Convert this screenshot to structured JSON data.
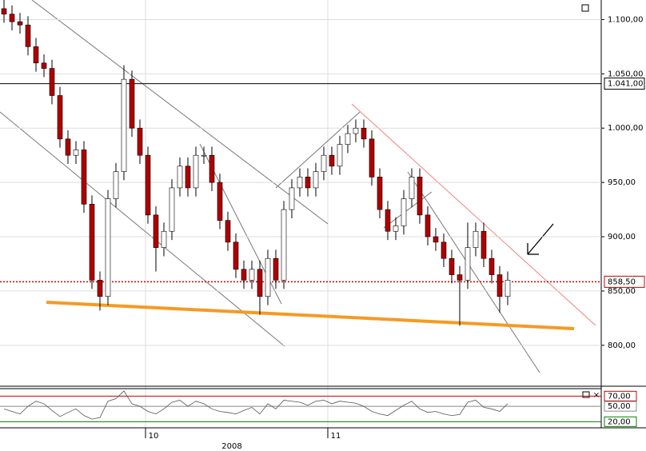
{
  "chart_data": {
    "type": "candlestick",
    "open": [
      1110,
      1105,
      1098,
      1095,
      1075,
      1060,
      1055,
      1030,
      990,
      975,
      980,
      930,
      860,
      845,
      935,
      960,
      1045,
      1000,
      975,
      920,
      890,
      905,
      945,
      965,
      945,
      975,
      975,
      950,
      915,
      895,
      870,
      860,
      870,
      845,
      880,
      860,
      925,
      945,
      955,
      945,
      960,
      975,
      965,
      985,
      995,
      1000,
      990,
      955,
      925,
      905,
      910,
      935,
      955,
      920,
      900,
      895,
      880,
      865,
      860,
      890,
      905,
      880,
      865,
      845
    ],
    "high": [
      1118,
      1113,
      1106,
      1103,
      1083,
      1068,
      1063,
      1038,
      998,
      988,
      988,
      938,
      868,
      943,
      968,
      1058,
      1053,
      1008,
      983,
      928,
      913,
      953,
      973,
      973,
      983,
      983,
      983,
      958,
      923,
      903,
      878,
      878,
      878,
      888,
      888,
      933,
      953,
      963,
      963,
      968,
      983,
      983,
      993,
      1003,
      1008,
      1008,
      998,
      963,
      933,
      918,
      943,
      963,
      963,
      928,
      908,
      903,
      888,
      873,
      913,
      913,
      913,
      888,
      873,
      868
    ],
    "low": [
      1097,
      1090,
      1087,
      1067,
      1052,
      1047,
      1022,
      982,
      967,
      967,
      922,
      852,
      832,
      837,
      927,
      952,
      992,
      967,
      912,
      868,
      882,
      897,
      937,
      937,
      937,
      967,
      942,
      907,
      887,
      862,
      852,
      852,
      828,
      837,
      852,
      852,
      917,
      937,
      937,
      937,
      952,
      957,
      957,
      977,
      987,
      982,
      947,
      917,
      897,
      897,
      902,
      927,
      912,
      892,
      887,
      872,
      857,
      818,
      852,
      882,
      872,
      857,
      830,
      837
    ],
    "close": [
      1105,
      1098,
      1095,
      1075,
      1060,
      1055,
      1030,
      990,
      975,
      980,
      930,
      860,
      845,
      935,
      960,
      1045,
      1000,
      975,
      920,
      890,
      905,
      945,
      965,
      945,
      975,
      975,
      950,
      915,
      895,
      870,
      860,
      870,
      845,
      880,
      860,
      925,
      945,
      955,
      945,
      960,
      975,
      965,
      985,
      995,
      1000,
      990,
      955,
      925,
      905,
      910,
      935,
      955,
      920,
      900,
      895,
      880,
      865,
      860,
      890,
      905,
      880,
      865,
      845,
      860
    ],
    "up_color": "#ffffff",
    "down_color": "#b00000",
    "ylim": [
      766,
      1118
    ],
    "yticks": [
      {
        "value": 800,
        "label": "800,00"
      },
      {
        "value": 850,
        "label": "850,00"
      },
      {
        "value": 900,
        "label": "900,00"
      },
      {
        "value": 950,
        "label": "950,00"
      },
      {
        "value": 1000,
        "label": "1.000,00"
      },
      {
        "value": 1050,
        "label": "1.050,00"
      },
      {
        "value": 1100,
        "label": "1.100,00"
      }
    ],
    "reference_lines": [
      {
        "value": 1041,
        "label": "1.041,00",
        "color": "#000000"
      },
      {
        "value": 858.5,
        "label": "858,50",
        "color": "#cc0000"
      }
    ],
    "month_labels": [
      "10",
      "11"
    ],
    "year_label": "2008",
    "rsi": {
      "values": [
        45,
        40,
        35,
        50,
        60,
        55,
        42,
        30,
        38,
        45,
        32,
        25,
        28,
        60,
        65,
        80,
        55,
        50,
        40,
        35,
        45,
        58,
        62,
        50,
        60,
        55,
        45,
        40,
        38,
        35,
        42,
        48,
        35,
        55,
        45,
        62,
        60,
        58,
        52,
        60,
        62,
        55,
        60,
        58,
        56,
        50,
        40,
        35,
        32,
        42,
        52,
        60,
        45,
        38,
        40,
        35,
        32,
        34,
        58,
        62,
        48,
        45,
        40,
        55
      ],
      "ylim": [
        8,
        83
      ],
      "levels": [
        {
          "value": 70,
          "label": "70,00",
          "color": "#cc0000"
        },
        {
          "value": 50,
          "label": "50,00",
          "color": "#888888"
        },
        {
          "value": 20,
          "label": "20,00",
          "color": "#008000"
        }
      ]
    }
  }
}
